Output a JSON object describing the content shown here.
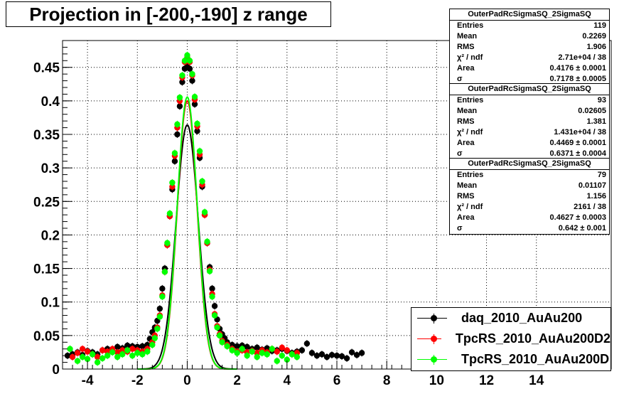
{
  "chart_data": {
    "type": "scatter",
    "title": "Projection in [-200,-190] z range",
    "xlim": [
      -5,
      17
    ],
    "ylim": [
      0,
      0.49
    ],
    "x_ticks": [
      "-4",
      "-2",
      "0",
      "2",
      "4",
      "6",
      "8",
      "10",
      "12",
      "14"
    ],
    "x_tick_values": [
      -4,
      -2,
      0,
      2,
      4,
      6,
      8,
      10,
      12,
      14
    ],
    "y_ticks": [
      "0",
      "0.05",
      "0.1",
      "0.15",
      "0.2",
      "0.25",
      "0.3",
      "0.35",
      "0.4",
      "0.45"
    ],
    "y_tick_values": [
      0,
      0.05,
      0.1,
      0.15,
      0.2,
      0.25,
      0.3,
      0.35,
      0.4,
      0.45
    ],
    "grid": true,
    "legend_position": "bottom-right",
    "series": [
      {
        "name": "daq_2010_AuAu200",
        "color": "#000000",
        "fit_sigma": 0.7178,
        "fit_area": 0.4176,
        "points": [
          [
            -4.8,
            0.02
          ],
          [
            -4.6,
            0.022
          ],
          [
            -4.4,
            0.025
          ],
          [
            -4.2,
            0.021
          ],
          [
            -4.0,
            0.027
          ],
          [
            -3.8,
            0.025
          ],
          [
            -3.6,
            0.022
          ],
          [
            -3.4,
            0.028
          ],
          [
            -3.2,
            0.03
          ],
          [
            -3.0,
            0.027
          ],
          [
            -2.8,
            0.033
          ],
          [
            -2.6,
            0.031
          ],
          [
            -2.4,
            0.035
          ],
          [
            -2.2,
            0.034
          ],
          [
            -2.0,
            0.033
          ],
          [
            -1.8,
            0.034
          ],
          [
            -1.6,
            0.036
          ],
          [
            -1.5,
            0.045
          ],
          [
            -1.4,
            0.055
          ],
          [
            -1.3,
            0.062
          ],
          [
            -1.2,
            0.072
          ],
          [
            -1.1,
            0.09
          ],
          [
            -1.0,
            0.12
          ],
          [
            -0.9,
            0.15
          ],
          [
            -0.8,
            0.185
          ],
          [
            -0.7,
            0.228
          ],
          [
            -0.6,
            0.268
          ],
          [
            -0.5,
            0.31
          ],
          [
            -0.4,
            0.35
          ],
          [
            -0.3,
            0.392
          ],
          [
            -0.2,
            0.428
          ],
          [
            -0.1,
            0.448
          ],
          [
            0.0,
            0.452
          ],
          [
            0.1,
            0.448
          ],
          [
            0.2,
            0.43
          ],
          [
            0.3,
            0.395
          ],
          [
            0.4,
            0.355
          ],
          [
            0.5,
            0.315
          ],
          [
            0.6,
            0.272
          ],
          [
            0.7,
            0.23
          ],
          [
            0.8,
            0.188
          ],
          [
            0.9,
            0.152
          ],
          [
            1.0,
            0.12
          ],
          [
            1.1,
            0.094
          ],
          [
            1.2,
            0.074
          ],
          [
            1.3,
            0.06
          ],
          [
            1.4,
            0.052
          ],
          [
            1.5,
            0.046
          ],
          [
            1.6,
            0.04
          ],
          [
            1.8,
            0.036
          ],
          [
            2.0,
            0.034
          ],
          [
            2.2,
            0.035
          ],
          [
            2.4,
            0.033
          ],
          [
            2.6,
            0.03
          ],
          [
            2.8,
            0.032
          ],
          [
            3.0,
            0.029
          ],
          [
            3.2,
            0.031
          ],
          [
            3.4,
            0.027
          ],
          [
            3.6,
            0.028
          ],
          [
            3.8,
            0.03
          ],
          [
            4.0,
            0.027
          ],
          [
            4.2,
            0.024
          ],
          [
            4.4,
            0.026
          ],
          [
            4.6,
            0.028
          ],
          [
            4.8,
            0.038
          ],
          [
            5.0,
            0.024
          ],
          [
            5.2,
            0.02
          ],
          [
            5.4,
            0.022
          ],
          [
            5.6,
            0.018
          ],
          [
            5.8,
            0.021
          ],
          [
            6.0,
            0.02
          ],
          [
            6.2,
            0.019
          ],
          [
            6.4,
            0.016
          ],
          [
            6.6,
            0.025
          ],
          [
            6.8,
            0.021
          ],
          [
            7.0,
            0.024
          ]
        ]
      },
      {
        "name": "TpcRS_2010_AuAu200D2",
        "color": "#ff0000",
        "fit_sigma": 0.6371,
        "fit_area": 0.4469,
        "points": [
          [
            -4.6,
            0.018
          ],
          [
            -4.4,
            0.024
          ],
          [
            -4.2,
            0.03
          ],
          [
            -4.0,
            0.026
          ],
          [
            -3.8,
            0.022
          ],
          [
            -3.6,
            0.018
          ],
          [
            -3.4,
            0.028
          ],
          [
            -3.2,
            0.026
          ],
          [
            -3.0,
            0.03
          ],
          [
            -2.8,
            0.025
          ],
          [
            -2.6,
            0.028
          ],
          [
            -2.4,
            0.026
          ],
          [
            -2.2,
            0.03
          ],
          [
            -2.0,
            0.028
          ],
          [
            -1.8,
            0.026
          ],
          [
            -1.6,
            0.03
          ],
          [
            -1.4,
            0.04
          ],
          [
            -1.3,
            0.05
          ],
          [
            -1.2,
            0.062
          ],
          [
            -1.1,
            0.08
          ],
          [
            -1.0,
            0.11
          ],
          [
            -0.9,
            0.145
          ],
          [
            -0.8,
            0.185
          ],
          [
            -0.7,
            0.228
          ],
          [
            -0.6,
            0.272
          ],
          [
            -0.5,
            0.318
          ],
          [
            -0.4,
            0.36
          ],
          [
            -0.3,
            0.4
          ],
          [
            -0.2,
            0.435
          ],
          [
            -0.1,
            0.458
          ],
          [
            0.0,
            0.465
          ],
          [
            0.1,
            0.458
          ],
          [
            0.2,
            0.438
          ],
          [
            0.3,
            0.402
          ],
          [
            0.4,
            0.362
          ],
          [
            0.5,
            0.32
          ],
          [
            0.6,
            0.275
          ],
          [
            0.7,
            0.23
          ],
          [
            0.8,
            0.188
          ],
          [
            0.9,
            0.148
          ],
          [
            1.0,
            0.112
          ],
          [
            1.1,
            0.082
          ],
          [
            1.2,
            0.064
          ],
          [
            1.3,
            0.052
          ],
          [
            1.4,
            0.042
          ],
          [
            1.6,
            0.036
          ],
          [
            1.8,
            0.03
          ],
          [
            2.0,
            0.026
          ],
          [
            2.2,
            0.028
          ],
          [
            2.4,
            0.025
          ],
          [
            2.6,
            0.027
          ],
          [
            2.8,
            0.024
          ],
          [
            3.0,
            0.028
          ],
          [
            3.2,
            0.025
          ],
          [
            3.4,
            0.03
          ],
          [
            3.6,
            0.026
          ],
          [
            3.8,
            0.032
          ],
          [
            4.0,
            0.028
          ],
          [
            4.2,
            0.022
          ],
          [
            4.4,
            0.024
          ]
        ]
      },
      {
        "name": "TpcRS_2010_AuAu200D",
        "color": "#00ff00",
        "fit_sigma": 0.642,
        "fit_area": 0.4627,
        "points": [
          [
            -4.7,
            0.03
          ],
          [
            -4.4,
            0.012
          ],
          [
            -4.2,
            0.018
          ],
          [
            -4.0,
            0.015
          ],
          [
            -3.8,
            0.022
          ],
          [
            -3.6,
            0.01
          ],
          [
            -3.4,
            0.016
          ],
          [
            -3.2,
            0.02
          ],
          [
            -3.0,
            0.025
          ],
          [
            -2.8,
            0.018
          ],
          [
            -2.6,
            0.022
          ],
          [
            -2.4,
            0.028
          ],
          [
            -2.2,
            0.02
          ],
          [
            -2.0,
            0.024
          ],
          [
            -1.8,
            0.022
          ],
          [
            -1.6,
            0.026
          ],
          [
            -1.4,
            0.036
          ],
          [
            -1.3,
            0.046
          ],
          [
            -1.2,
            0.06
          ],
          [
            -1.1,
            0.078
          ],
          [
            -1.0,
            0.108
          ],
          [
            -0.9,
            0.145
          ],
          [
            -0.8,
            0.188
          ],
          [
            -0.7,
            0.232
          ],
          [
            -0.6,
            0.278
          ],
          [
            -0.5,
            0.322
          ],
          [
            -0.4,
            0.365
          ],
          [
            -0.3,
            0.405
          ],
          [
            -0.2,
            0.438
          ],
          [
            -0.1,
            0.46
          ],
          [
            0.0,
            0.468
          ],
          [
            0.1,
            0.46
          ],
          [
            0.2,
            0.44
          ],
          [
            0.3,
            0.406
          ],
          [
            0.4,
            0.366
          ],
          [
            0.5,
            0.325
          ],
          [
            0.6,
            0.28
          ],
          [
            0.7,
            0.234
          ],
          [
            0.8,
            0.19
          ],
          [
            0.9,
            0.146
          ],
          [
            1.0,
            0.108
          ],
          [
            1.1,
            0.08
          ],
          [
            1.2,
            0.062
          ],
          [
            1.3,
            0.05
          ],
          [
            1.4,
            0.04
          ],
          [
            1.6,
            0.034
          ],
          [
            1.8,
            0.028
          ],
          [
            2.0,
            0.024
          ],
          [
            2.2,
            0.03
          ],
          [
            2.4,
            0.02
          ],
          [
            2.6,
            0.026
          ],
          [
            2.8,
            0.018
          ],
          [
            3.0,
            0.024
          ],
          [
            3.2,
            0.022
          ],
          [
            3.4,
            0.03
          ],
          [
            3.6,
            0.012
          ],
          [
            3.8,
            0.02
          ],
          [
            4.0,
            0.014
          ],
          [
            4.2,
            0.022
          ],
          [
            4.4,
            0.018
          ]
        ]
      }
    ]
  },
  "stat_boxes": [
    {
      "title": "OuterPadRcSigmaSQ_2SigmaSQ",
      "rows": [
        {
          "label": "Entries",
          "value": "119"
        },
        {
          "label": "Mean",
          "value": "0.2269"
        },
        {
          "label": "RMS",
          "value": "1.906"
        },
        {
          "label": "χ² / ndf",
          "value": "2.71e+04 / 38"
        },
        {
          "label": "Area",
          "value": "0.4176 ± 0.0001"
        },
        {
          "label": "σ",
          "value": "0.7178 ± 0.0005"
        }
      ]
    },
    {
      "title": "OuterPadRcSigmaSQ_2SigmaSQ",
      "rows": [
        {
          "label": "Entries",
          "value": "93"
        },
        {
          "label": "Mean",
          "value": "0.02605"
        },
        {
          "label": "RMS",
          "value": "1.381"
        },
        {
          "label": "χ² / ndf",
          "value": "1.431e+04 / 38"
        },
        {
          "label": "Area",
          "value": "0.4469 ± 0.0001"
        },
        {
          "label": "σ",
          "value": "0.6371 ± 0.0004"
        }
      ]
    },
    {
      "title": "OuterPadRcSigmaSQ_2SigmaSQ",
      "rows": [
        {
          "label": "Entries",
          "value": "79"
        },
        {
          "label": "Mean",
          "value": "0.01107"
        },
        {
          "label": "RMS",
          "value": "1.156"
        },
        {
          "label": "χ² / ndf",
          "value": "2161 / 38"
        },
        {
          "label": "Area",
          "value": "0.4627 ± 0.0003"
        },
        {
          "label": "σ",
          "value": "0.642 ± 0.001"
        }
      ]
    }
  ]
}
